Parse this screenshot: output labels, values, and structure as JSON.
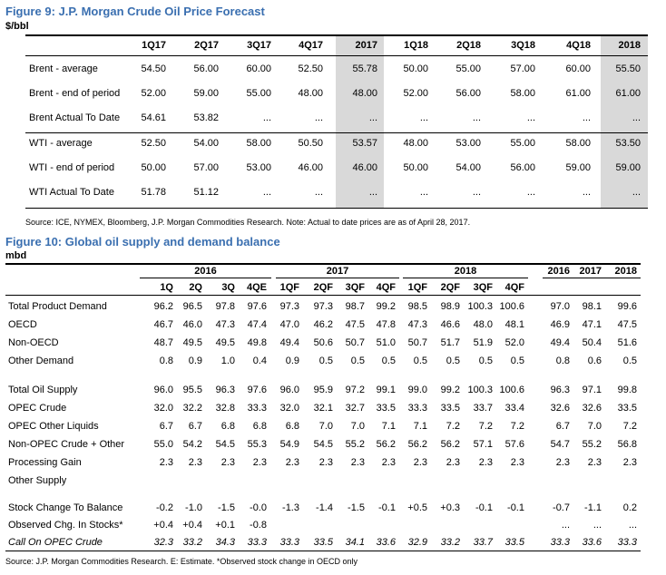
{
  "fig9": {
    "title": "Figure 9: J.P. Morgan Crude Oil Price Forecast",
    "unit": "$/bbl",
    "columns": [
      "1Q17",
      "2Q17",
      "3Q17",
      "4Q17",
      "2017",
      "1Q18",
      "2Q18",
      "3Q18",
      "4Q18",
      "2018"
    ],
    "rows": [
      {
        "label": "Brent - average",
        "values": [
          "54.50",
          "56.00",
          "60.00",
          "52.50",
          "55.78",
          "50.00",
          "55.00",
          "57.00",
          "60.00",
          "55.50"
        ]
      },
      {
        "label": "Brent - end of period",
        "values": [
          "52.00",
          "59.00",
          "55.00",
          "48.00",
          "48.00",
          "52.00",
          "56.00",
          "58.00",
          "61.00",
          "61.00"
        ]
      },
      {
        "label": "Brent Actual To Date",
        "values": [
          "54.61",
          "53.82",
          "...",
          "...",
          "...",
          "...",
          "...",
          "...",
          "...",
          "..."
        ]
      },
      {
        "label": "WTI - average",
        "values": [
          "52.50",
          "54.00",
          "58.00",
          "50.50",
          "53.57",
          "48.00",
          "53.00",
          "55.00",
          "58.00",
          "53.50"
        ]
      },
      {
        "label": "WTI - end of period",
        "values": [
          "50.00",
          "57.00",
          "53.00",
          "46.00",
          "46.00",
          "50.00",
          "54.00",
          "56.00",
          "59.00",
          "59.00"
        ]
      },
      {
        "label": "WTI Actual To Date",
        "values": [
          "51.78",
          "51.12",
          "...",
          "...",
          "...",
          "...",
          "...",
          "...",
          "...",
          "..."
        ]
      }
    ],
    "source": "Source: ICE, NYMEX, Bloomberg, J.P. Morgan Commodities Research. Note: Actual to date prices are as of April 28, 2017."
  },
  "fig10": {
    "title": "Figure 10: Global oil supply and demand balance",
    "unit": "mbd",
    "year_groups": [
      "2016",
      "2017",
      "2018"
    ],
    "columns": [
      "1Q",
      "2Q",
      "3Q",
      "4QE",
      "1QF",
      "2QF",
      "3QF",
      "4QF",
      "1QF",
      "2QF",
      "3QF",
      "4QF",
      "2016",
      "2017",
      "2018"
    ],
    "rows": [
      {
        "label": "Total Product Demand",
        "values": [
          "96.2",
          "96.5",
          "97.8",
          "97.6",
          "97.3",
          "97.3",
          "98.7",
          "99.2",
          "98.5",
          "98.9",
          "100.3",
          "100.6",
          "97.0",
          "98.1",
          "99.6"
        ]
      },
      {
        "label": "OECD",
        "values": [
          "46.7",
          "46.0",
          "47.3",
          "47.4",
          "47.0",
          "46.2",
          "47.5",
          "47.8",
          "47.3",
          "46.6",
          "48.0",
          "48.1",
          "46.9",
          "47.1",
          "47.5"
        ]
      },
      {
        "label": "Non-OECD",
        "values": [
          "48.7",
          "49.5",
          "49.5",
          "49.8",
          "49.4",
          "50.6",
          "50.7",
          "51.0",
          "50.7",
          "51.7",
          "51.9",
          "52.0",
          "49.4",
          "50.4",
          "51.6"
        ]
      },
      {
        "label": "Other Demand",
        "values": [
          "0.8",
          "0.9",
          "1.0",
          "0.4",
          "0.9",
          "0.5",
          "0.5",
          "0.5",
          "0.5",
          "0.5",
          "0.5",
          "0.5",
          "0.8",
          "0.6",
          "0.5"
        ]
      },
      {
        "label": "Total Oil Supply",
        "values": [
          "96.0",
          "95.5",
          "96.3",
          "97.6",
          "96.0",
          "95.9",
          "97.2",
          "99.1",
          "99.0",
          "99.2",
          "100.3",
          "100.6",
          "96.3",
          "97.1",
          "99.8"
        ]
      },
      {
        "label": "OPEC Crude",
        "values": [
          "32.0",
          "32.2",
          "32.8",
          "33.3",
          "32.0",
          "32.1",
          "32.7",
          "33.5",
          "33.3",
          "33.5",
          "33.7",
          "33.4",
          "32.6",
          "32.6",
          "33.5"
        ]
      },
      {
        "label": "OPEC Other Liquids",
        "values": [
          "6.7",
          "6.7",
          "6.8",
          "6.8",
          "6.8",
          "7.0",
          "7.0",
          "7.1",
          "7.1",
          "7.2",
          "7.2",
          "7.2",
          "6.7",
          "7.0",
          "7.2"
        ]
      },
      {
        "label": "Non-OPEC Crude + Other",
        "values": [
          "55.0",
          "54.2",
          "54.5",
          "55.3",
          "54.9",
          "54.5",
          "55.2",
          "56.2",
          "56.2",
          "56.2",
          "57.1",
          "57.6",
          "54.7",
          "55.2",
          "56.8"
        ]
      },
      {
        "label": "Processing Gain",
        "values": [
          "2.3",
          "2.3",
          "2.3",
          "2.3",
          "2.3",
          "2.3",
          "2.3",
          "2.3",
          "2.3",
          "2.3",
          "2.3",
          "2.3",
          "2.3",
          "2.3",
          "2.3"
        ]
      },
      {
        "label": "Other Supply",
        "values": [
          "",
          "",
          "",
          "",
          "",
          "",
          "",
          "",
          "",
          "",
          "",
          "",
          "",
          "",
          ""
        ]
      },
      {
        "label": "Stock Change To Balance",
        "values": [
          "-0.2",
          "-1.0",
          "-1.5",
          "-0.0",
          "-1.3",
          "-1.4",
          "-1.5",
          "-0.1",
          "+0.5",
          "+0.3",
          "-0.1",
          "-0.1",
          "-0.7",
          "-1.1",
          "0.2"
        ]
      },
      {
        "label": "Observed Chg. In Stocks*",
        "values": [
          "+0.4",
          "+0.4",
          "+0.1",
          "-0.8",
          "",
          "",
          "",
          "",
          "",
          "",
          "",
          "",
          "...",
          "...",
          "..."
        ]
      },
      {
        "label": "Call On OPEC Crude",
        "values": [
          "32.3",
          "33.2",
          "34.3",
          "33.3",
          "33.3",
          "33.5",
          "34.1",
          "33.6",
          "32.9",
          "33.2",
          "33.7",
          "33.5",
          "33.3",
          "33.6",
          "33.3"
        ]
      }
    ],
    "source": "Source: J.P. Morgan Commodities Research. E: Estimate. *Observed stock change in OECD only"
  }
}
